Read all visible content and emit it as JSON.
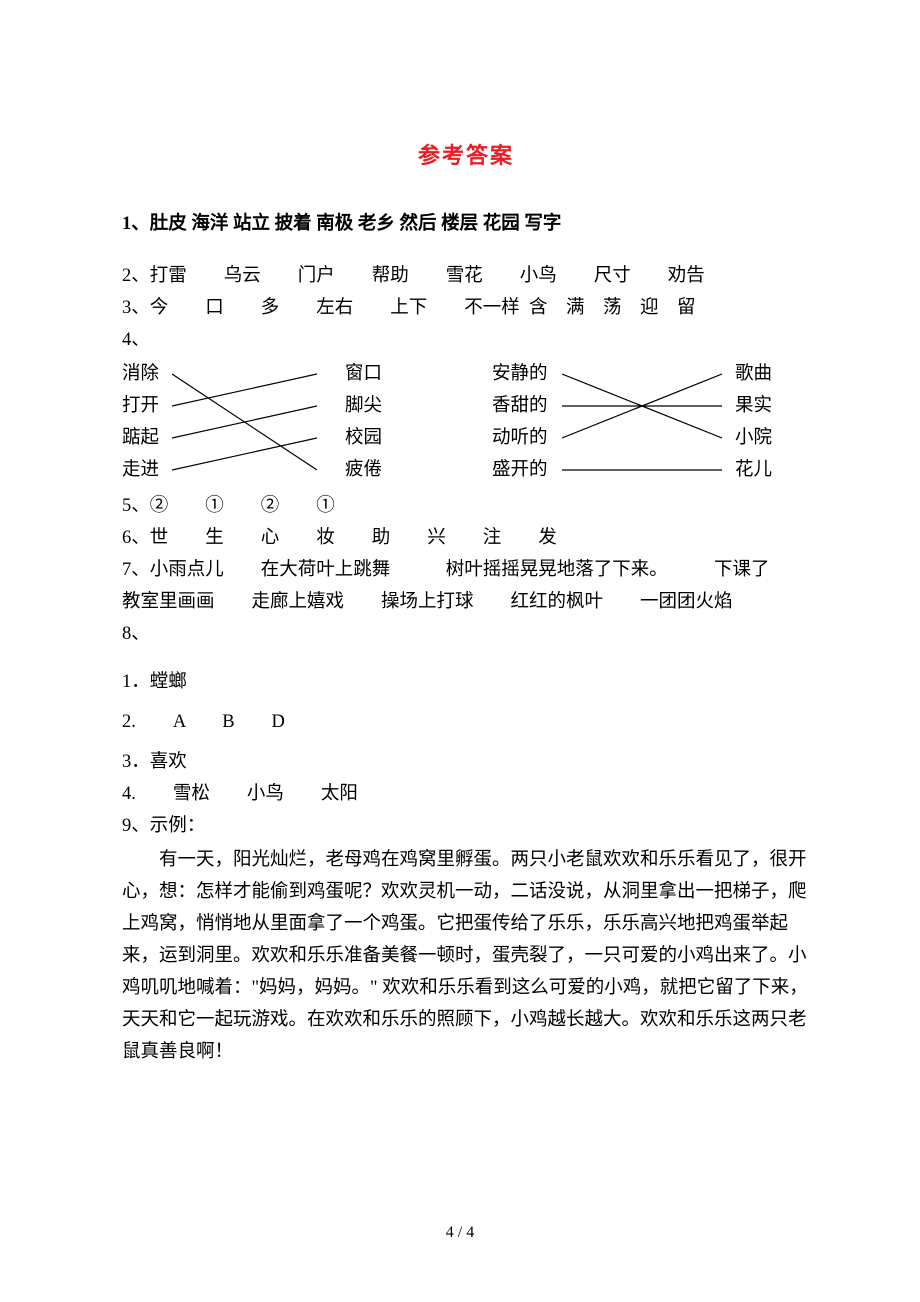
{
  "title": "参考答案",
  "colors": {
    "title_color": "#ed1c24",
    "text_color": "#000000",
    "background_color": "#ffffff",
    "line_color": "#000000"
  },
  "fonts": {
    "title_size": 22,
    "body_size": 18.5,
    "page_num_size": 16
  },
  "q1": "1、肚皮 海洋 站立 披着 南极 老乡 然后 楼层 花园 写字",
  "q2": "2、打雷　　乌云　　门户　　帮助　　雪花　　小鸟　　尺寸　　劝告",
  "q3": "3、今　　口　　多　　左右　　上下　　不一样  含　满　荡　迎　留",
  "q4_label": "4、",
  "q4": {
    "block1": {
      "left": [
        "消除",
        "打开",
        "踮起",
        "走进"
      ],
      "right": [
        "窗口",
        "脚尖",
        "校园",
        "疲倦"
      ],
      "connections": [
        [
          0,
          3
        ],
        [
          1,
          0
        ],
        [
          2,
          1
        ],
        [
          3,
          2
        ]
      ]
    },
    "block2": {
      "left": [
        "安静的",
        "香甜的",
        "动听的",
        "盛开的"
      ],
      "right": [
        "歌曲",
        "果实",
        "小院",
        "花儿"
      ],
      "connections": [
        [
          0,
          2
        ],
        [
          1,
          1
        ],
        [
          2,
          0
        ],
        [
          3,
          3
        ]
      ]
    }
  },
  "q5": "5、②　　①　　②　　①",
  "q6": "6、世　　生　　心　　妆　　助　　兴　　注　　发",
  "q7_line1": "7、小雨点儿　　在大荷叶上跳舞　　　树叶摇摇晃晃地落了下来。　　　下课了",
  "q7_line2": "教室里画画　　走廊上嬉戏　　操场上打球　　红红的枫叶　　一团团火焰",
  "q8_label": "8、",
  "q8": {
    "a1": "1．螳螂",
    "a2": "2.　　A　　B　　D",
    "a3": "3．喜欢",
    "a4": "4.　　雪松　　小鸟　　太阳"
  },
  "q9_label": "9、示例：",
  "q9_story": "有一天，阳光灿烂，老母鸡在鸡窝里孵蛋。两只小老鼠欢欢和乐乐看见了，很开心，想：怎样才能偷到鸡蛋呢？欢欢灵机一动，二话没说，从洞里拿出一把梯子，爬上鸡窝，悄悄地从里面拿了一个鸡蛋。它把蛋传给了乐乐，乐乐高兴地把鸡蛋举起来，运到洞里。欢欢和乐乐准备美餐一顿时，蛋壳裂了，一只可爱的小鸡出来了。小鸡叽叽地喊着：\"妈妈，妈妈。\" 欢欢和乐乐看到这么可爱的小鸡，就把它留了下来，天天和它一起玩游戏。在欢欢和乐乐的照顾下，小鸡越长越大。欢欢和乐乐这两只老鼠真善良啊！",
  "page_number": "4 / 4"
}
